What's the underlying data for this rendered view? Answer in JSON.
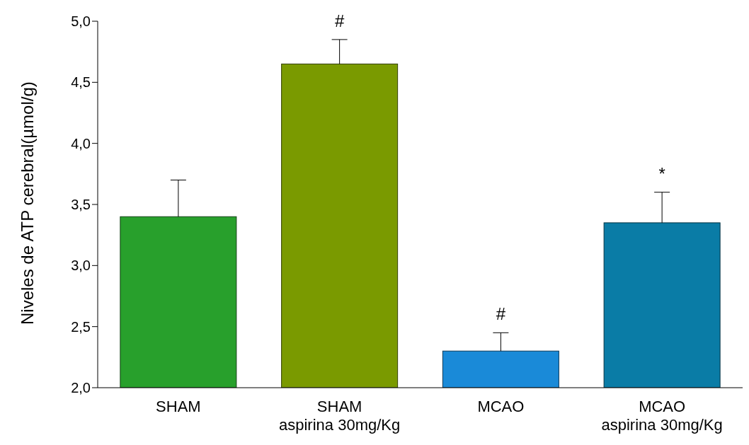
{
  "chart_data": {
    "type": "bar",
    "ylabel": "Niveles de ATP cerebral(µmol/g)",
    "categories": [
      "SHAM",
      "SHAM\naspirina 30mg/Kg",
      "MCAO",
      "MCAO\naspirina 30mg/Kg"
    ],
    "values": [
      3.4,
      4.65,
      2.3,
      3.35
    ],
    "errors": [
      0.3,
      0.2,
      0.15,
      0.25
    ],
    "colors": [
      "#28a02c",
      "#7a9a00",
      "#1a8ad8",
      "#0a7ca6"
    ],
    "ylim": [
      2,
      5
    ],
    "yticks": [
      {
        "value": 2,
        "label": "2,0"
      },
      {
        "value": 2.5,
        "label": "2,5"
      },
      {
        "value": 3,
        "label": "3,0"
      },
      {
        "value": 3.5,
        "label": "3,5"
      },
      {
        "value": 4,
        "label": "4,0"
      },
      {
        "value": 4.5,
        "label": "4,5"
      },
      {
        "value": 5,
        "label": "5,0"
      }
    ],
    "annotations": [
      {
        "text": "#",
        "x": "SHAM\naspirina 30mg/Kg",
        "y": 4.85
      },
      {
        "text": "#",
        "x": "MCAO",
        "y": 2.45
      },
      {
        "text": "*",
        "x": "MCAO\naspirina 30mg/Kg",
        "y": 3.6
      }
    ],
    "grid": false,
    "legend": false
  }
}
